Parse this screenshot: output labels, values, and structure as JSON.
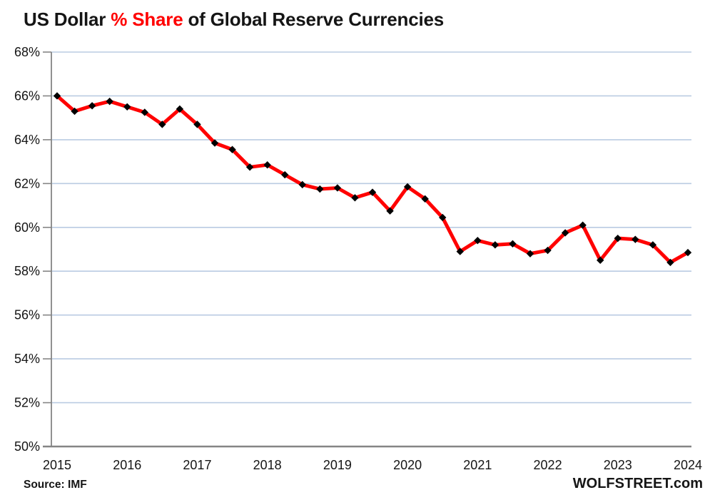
{
  "title": {
    "part1": "US Dollar ",
    "part2": "% Share",
    "part3": " of Global Reserve Currencies"
  },
  "footer": {
    "source": "Source: IMF",
    "brand": "WOLFSTREET.com"
  },
  "colors": {
    "line": "#ff0000",
    "marker": "#000000",
    "gridline": "#bacbe2",
    "axis": "#858585",
    "text": "#151515",
    "title_accent": "#ff0000"
  },
  "chart_data": {
    "type": "line",
    "title": "US Dollar % Share of Global Reserve Currencies",
    "xlabel": "",
    "ylabel": "% share of global reserve currencies",
    "ylim": [
      50,
      68
    ],
    "y_ticks": [
      50,
      52,
      54,
      56,
      58,
      60,
      62,
      64,
      66,
      68
    ],
    "y_tick_suffix": "%",
    "x_tick_labels": [
      "2015",
      "2016",
      "2017",
      "2018",
      "2019",
      "2020",
      "2021",
      "2022",
      "2023",
      "2024"
    ],
    "grid": "horizontal",
    "legend_position": "none",
    "x": [
      "2015 Q1",
      "2015 Q2",
      "2015 Q3",
      "2015 Q4",
      "2016 Q1",
      "2016 Q2",
      "2016 Q3",
      "2016 Q4",
      "2017 Q1",
      "2017 Q2",
      "2017 Q3",
      "2017 Q4",
      "2018 Q1",
      "2018 Q2",
      "2018 Q3",
      "2018 Q4",
      "2019 Q1",
      "2019 Q2",
      "2019 Q3",
      "2019 Q4",
      "2020 Q1",
      "2020 Q2",
      "2020 Q3",
      "2020 Q4",
      "2021 Q1",
      "2021 Q2",
      "2021 Q3",
      "2021 Q4",
      "2022 Q1",
      "2022 Q2",
      "2022 Q3",
      "2022 Q4",
      "2023 Q1",
      "2023 Q2",
      "2023 Q3",
      "2023 Q4",
      "2024 Q1"
    ],
    "series": [
      {
        "name": "US Dollar % share of global reserve currencies",
        "values": [
          66.0,
          65.3,
          65.55,
          65.75,
          65.5,
          65.25,
          64.7,
          65.4,
          64.7,
          63.85,
          63.55,
          62.75,
          62.85,
          62.4,
          61.95,
          61.75,
          61.8,
          61.35,
          61.6,
          60.75,
          61.85,
          61.3,
          60.45,
          58.9,
          59.4,
          59.2,
          59.25,
          58.8,
          58.95,
          59.75,
          60.1,
          58.5,
          59.5,
          59.45,
          59.2,
          58.4,
          58.85
        ]
      }
    ],
    "source": "IMF"
  }
}
